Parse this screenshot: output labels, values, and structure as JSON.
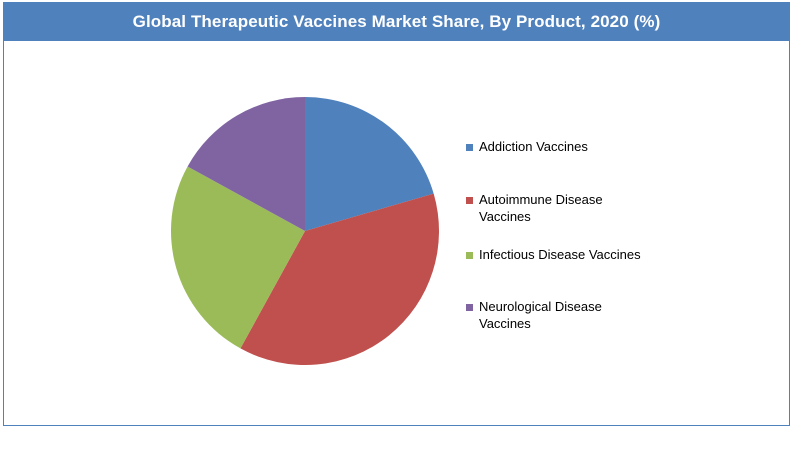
{
  "chart_data": {
    "type": "pie",
    "title": "Global Therapeutic Vaccines Market Share, By Product, 2020 (%)",
    "categories": [
      "Addiction Vaccines",
      "Autoimmune Disease Vaccines",
      "Infectious Disease Vaccines",
      "Neurological Disease Vaccines"
    ],
    "values": [
      20.5,
      37.5,
      25.0,
      17.0
    ],
    "colors": [
      "#4f81bd",
      "#c0504d",
      "#9bbb59",
      "#8064a2"
    ],
    "legend_position": "right"
  }
}
